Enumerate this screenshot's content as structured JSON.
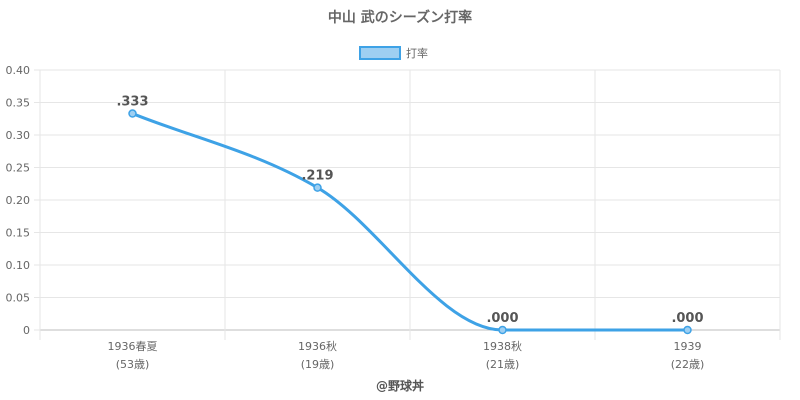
{
  "chart_data": {
    "type": "line",
    "title": "中山 武のシーズン打率",
    "categories": [
      "1936春夏",
      "1936秋",
      "1938秋",
      "1939"
    ],
    "category_sublabels": [
      "(53歳)",
      "(19歳)",
      "(21歳)",
      "(22歳)"
    ],
    "series": [
      {
        "name": "打率",
        "values": [
          0.333,
          0.219,
          0.0,
          0.0
        ],
        "labels": [
          ".333",
          ".219",
          ".000",
          ".000"
        ],
        "color": "#3ea2e6",
        "fill": "#9ecff2"
      }
    ],
    "yticks": [
      "0",
      "0.05",
      "0.10",
      "0.15",
      "0.20",
      "0.25",
      "0.30",
      "0.35",
      "0.40"
    ],
    "ylim": [
      0,
      0.4
    ],
    "grid": true,
    "legend_position": "top-center"
  },
  "footer": {
    "credit": "@野球丼"
  },
  "colors": {
    "grid": "#e6e6e6",
    "axis": "#bdbdbd",
    "text": "#666666",
    "title": "#666666"
  }
}
